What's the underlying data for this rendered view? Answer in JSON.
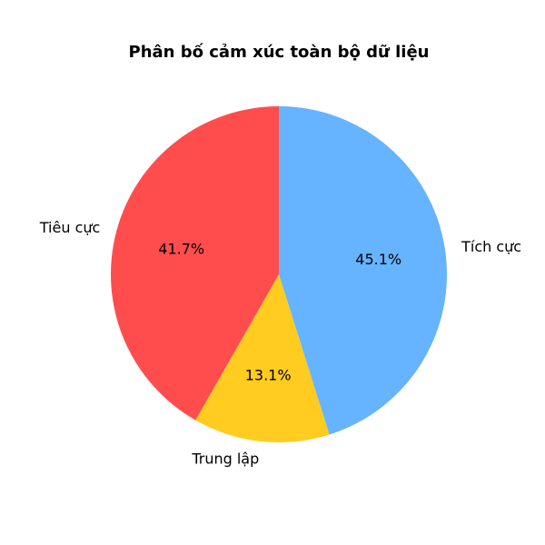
{
  "chart_data": {
    "type": "pie",
    "title": "Phân bố cảm xúc toàn bộ dữ liệu",
    "slices": [
      {
        "label": "Tích cực",
        "value": 45.1,
        "pct_label": "45.1%",
        "color": "#66b3ff"
      },
      {
        "label": "Trung lập",
        "value": 13.1,
        "pct_label": "13.1%",
        "color": "#ffcc1f"
      },
      {
        "label": "Tiêu cực",
        "value": 41.7,
        "pct_label": "41.7%",
        "color": "#ff4d4d"
      }
    ],
    "start_angle": 90,
    "direction": "clockwise"
  }
}
